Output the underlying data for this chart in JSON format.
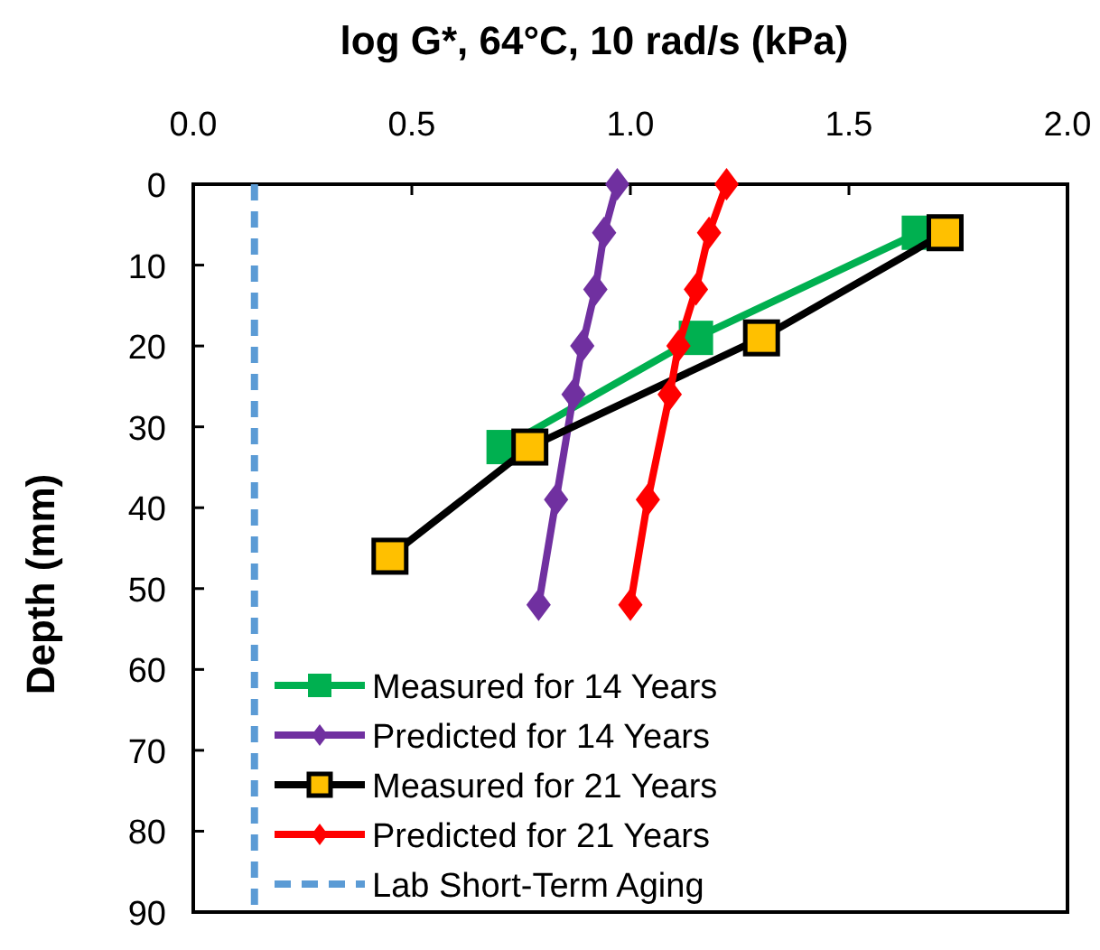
{
  "chart_data": {
    "type": "line",
    "xlabel": "log G*, 64°C, 10 rad/s (kPa)",
    "ylabel": "Depth (mm)",
    "xlim": [
      0,
      2
    ],
    "xticks": [
      {
        "value": 0,
        "label": "0.0"
      },
      {
        "value": 0.5,
        "label": "0.5"
      },
      {
        "value": 1,
        "label": "1.0"
      },
      {
        "value": 1.5,
        "label": "1.5"
      },
      {
        "value": 2,
        "label": "2.0"
      }
    ],
    "ylim": [
      90,
      0
    ],
    "yticks": [
      0,
      10,
      20,
      30,
      40,
      50,
      60,
      70,
      80,
      90
    ],
    "legend": "bottom left",
    "grid": false,
    "line_style": "solid",
    "series": [
      {
        "name": "Measured for 14 Years",
        "color": "#00b050",
        "marker": "square",
        "x": [
          1.66,
          1.15,
          0.71
        ],
        "values": [
          6,
          19,
          32.5
        ]
      },
      {
        "name": "Predicted for 14 Years",
        "color": "#7030a0",
        "marker": "diamond",
        "x": [
          0.97,
          0.94,
          0.92,
          0.89,
          0.87,
          0.83,
          0.79
        ],
        "values": [
          0,
          6,
          13,
          20,
          26,
          39,
          52
        ]
      },
      {
        "name": "Measured for 21 Years",
        "color": "#000000",
        "colors": [
          "#ffc000",
          "#ffc000",
          "#ffc000",
          "#ffc000"
        ],
        "marker": "square",
        "x": [
          1.72,
          1.3,
          0.77,
          0.45
        ],
        "values": [
          6,
          19,
          32.5,
          46
        ]
      },
      {
        "name": "Predicted for 21 Years",
        "color": "#ff0000",
        "marker": "diamond",
        "x": [
          1.22,
          1.18,
          1.15,
          1.11,
          1.09,
          1.04,
          1.0
        ],
        "values": [
          0,
          6,
          13,
          20,
          26,
          39,
          52
        ]
      },
      {
        "name": "Lab Short-Term Aging",
        "type": "line",
        "color": "#5b9bd5",
        "marker": "none",
        "line_style": "dashed",
        "x": [
          0.14,
          0.14
        ],
        "values": [
          0,
          90
        ]
      }
    ]
  }
}
